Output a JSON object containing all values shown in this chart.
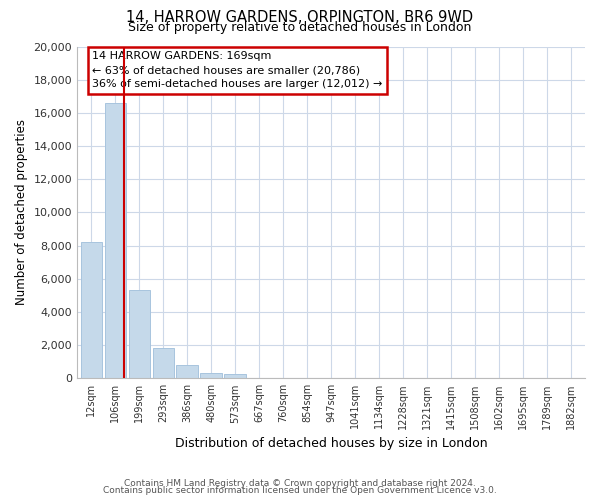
{
  "title": "14, HARROW GARDENS, ORPINGTON, BR6 9WD",
  "subtitle": "Size of property relative to detached houses in London",
  "xlabel": "Distribution of detached houses by size in London",
  "ylabel": "Number of detached properties",
  "bar_labels": [
    "12sqm",
    "106sqm",
    "199sqm",
    "293sqm",
    "386sqm",
    "480sqm",
    "573sqm",
    "667sqm",
    "760sqm",
    "854sqm",
    "947sqm",
    "1041sqm",
    "1134sqm",
    "1228sqm",
    "1321sqm",
    "1415sqm",
    "1508sqm",
    "1602sqm",
    "1695sqm",
    "1789sqm",
    "1882sqm"
  ],
  "bar_values": [
    8200,
    16600,
    5300,
    1850,
    800,
    300,
    270,
    0,
    0,
    0,
    0,
    0,
    0,
    0,
    0,
    0,
    0,
    0,
    0,
    0,
    0
  ],
  "bar_color": "#c5d9ea",
  "bar_edge_color": "#a8c4de",
  "property_line_color": "#cc0000",
  "property_line_x": 1.35,
  "ylim": [
    0,
    20000
  ],
  "yticks": [
    0,
    2000,
    4000,
    6000,
    8000,
    10000,
    12000,
    14000,
    16000,
    18000,
    20000
  ],
  "annotation_title": "14 HARROW GARDENS: 169sqm",
  "annotation_line1": "← 63% of detached houses are smaller (20,786)",
  "annotation_line2": "36% of semi-detached houses are larger (12,012) →",
  "annotation_box_color": "#ffffff",
  "annotation_box_edge": "#cc0000",
  "footer1": "Contains HM Land Registry data © Crown copyright and database right 2024.",
  "footer2": "Contains public sector information licensed under the Open Government Licence v3.0.",
  "fig_bg": "#ffffff",
  "grid_color": "#cdd8e8"
}
